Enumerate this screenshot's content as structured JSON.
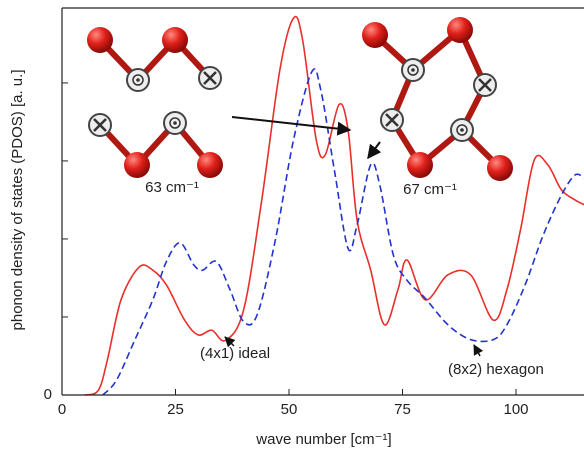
{
  "chart_data": {
    "type": "line",
    "x_label": "wave number [cm⁻¹]",
    "y_label": "phonon density of states (PDOS) [a. u.]",
    "xlim": [
      0,
      115
    ],
    "xticks": [
      0,
      25,
      50,
      75,
      100
    ],
    "ylim": [
      0,
      4.96
    ],
    "yticks": [
      0
    ],
    "y_minor_ticks": [
      1,
      2,
      3,
      4
    ],
    "series": [
      {
        "name": "(4x1) ideal",
        "color": "#e8302a",
        "dash": false,
        "x": [
          5,
          8,
          10,
          13,
          17,
          20,
          23,
          27,
          30,
          33,
          36,
          40,
          44,
          48,
          51,
          53,
          56,
          58,
          61,
          63,
          65,
          68,
          71,
          74,
          76,
          80,
          85,
          90,
          95,
          98,
          101,
          104,
          107,
          110,
          113,
          115
        ],
        "values": [
          0,
          0.06,
          0.45,
          1.22,
          1.64,
          1.6,
          1.41,
          0.96,
          0.77,
          0.83,
          0.7,
          1.09,
          2.5,
          4.17,
          4.83,
          4.55,
          3.27,
          3.08,
          3.72,
          3.4,
          2.24,
          1.6,
          0.9,
          1.35,
          1.73,
          1.22,
          1.54,
          1.54,
          0.96,
          1.35,
          2.12,
          3.01,
          2.95,
          2.63,
          2.5,
          2.44
        ]
      },
      {
        "name": "(8x2) hexagon",
        "color": "#2233cc",
        "dash": true,
        "x": [
          9,
          12,
          16,
          20,
          23,
          26,
          29,
          31,
          34,
          37,
          40,
          43,
          47,
          51,
          55,
          57,
          60,
          63,
          65,
          68,
          70,
          73,
          76,
          80,
          85,
          90,
          95,
          98,
          102,
          106,
          110,
          113,
          115
        ],
        "values": [
          0,
          0.19,
          0.7,
          1.22,
          1.71,
          1.95,
          1.67,
          1.6,
          1.71,
          1.35,
          0.94,
          1.03,
          1.99,
          3.27,
          4.14,
          3.91,
          2.88,
          1.88,
          2.18,
          2.95,
          2.69,
          1.79,
          1.47,
          1.24,
          0.9,
          0.71,
          0.71,
          0.9,
          1.41,
          2.05,
          2.56,
          2.82,
          2.78
        ]
      }
    ],
    "annotations": [
      "63 cm⁻¹",
      "67 cm⁻¹"
    ]
  }
}
